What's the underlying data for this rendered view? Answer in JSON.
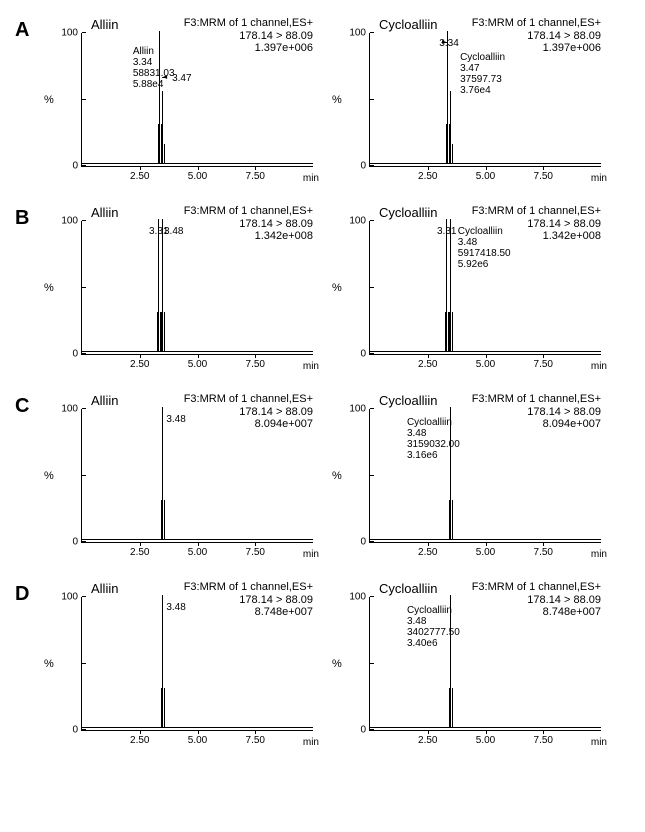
{
  "layout": {
    "xmin": 0,
    "xmax": 10,
    "xticks": [
      2.5,
      5.0,
      7.5
    ],
    "xtick_labels": [
      "2.50",
      "5.00",
      "7.50"
    ],
    "yticks": [
      0,
      100
    ],
    "ytick_labels": [
      "0",
      "100"
    ],
    "ylabel": "%",
    "xlabel": "min",
    "title_fontsize": 13,
    "info_fontsize": 11,
    "tick_fontsize": 10,
    "peak_color": "#000000",
    "axis_color": "#000000",
    "background_color": "#ffffff"
  },
  "rows": [
    {
      "label": "A",
      "panels": [
        {
          "title": "Alliin",
          "info1": "F3:MRM of 1 channel,ES+",
          "info2": "178.14 > 88.09",
          "info3": "1.397e+006",
          "peaks": [
            {
              "rt": 3.34,
              "h": 100,
              "side_h": 30
            },
            {
              "rt": 3.47,
              "h": 55,
              "side_h": 15
            }
          ],
          "ann_left": {
            "lines": [
              "Alliin",
              "3.34",
              "58831.03",
              "5.88e4"
            ],
            "x_rt": 2.2,
            "top_pct": 10
          },
          "rt_label_right": {
            "text": "3.47",
            "x_rt": 3.9,
            "top_pct": 30
          },
          "arrow": {
            "from_rt": 3.7,
            "to_rt": 3.48,
            "top_pct": 30
          }
        },
        {
          "title": "Cycloalliin",
          "info1": "F3:MRM of 1 channel,ES+",
          "info2": "178.14 > 88.09",
          "info3": "1.397e+006",
          "peaks": [
            {
              "rt": 3.34,
              "h": 100,
              "side_h": 30
            },
            {
              "rt": 3.47,
              "h": 55,
              "side_h": 15
            }
          ],
          "rt_label_left": {
            "text": "3.34",
            "x_rt": 3.0,
            "top_pct": 4
          },
          "ann_right": {
            "lines": [
              "Cycloalliin",
              "3.47",
              "37597.73",
              "3.76e4"
            ],
            "x_rt": 3.9,
            "top_pct": 14
          },
          "arrow": {
            "from_rt": 3.1,
            "to_rt": 3.33,
            "top_pct": 4
          }
        }
      ]
    },
    {
      "label": "B",
      "panels": [
        {
          "title": "Alliin",
          "info1": "F3:MRM of 1 channel,ES+",
          "info2": "178.14 > 88.09",
          "info3": "1.342e+008",
          "peaks": [
            {
              "rt": 3.31,
              "h": 100,
              "side_h": 30
            },
            {
              "rt": 3.48,
              "h": 100,
              "side_h": 30
            }
          ],
          "rt_label_left": {
            "text": "3.31",
            "x_rt": 2.9,
            "top_pct": 4
          },
          "rt_label_right": {
            "text": "3.48",
            "x_rt": 3.55,
            "top_pct": 4
          }
        },
        {
          "title": "Cycloalliin",
          "info1": "F3:MRM of 1 channel,ES+",
          "info2": "178.14 > 88.09",
          "info3": "1.342e+008",
          "peaks": [
            {
              "rt": 3.31,
              "h": 100,
              "side_h": 30
            },
            {
              "rt": 3.48,
              "h": 100,
              "side_h": 30
            }
          ],
          "rt_label_left": {
            "text": "3.31",
            "x_rt": 2.9,
            "top_pct": 4
          },
          "ann_right": {
            "lines": [
              "Cycloalliin",
              "3.48",
              "5917418.50",
              "5.92e6"
            ],
            "x_rt": 3.8,
            "top_pct": 4
          }
        }
      ]
    },
    {
      "label": "C",
      "panels": [
        {
          "title": "Alliin",
          "info1": "F3:MRM of 1 channel,ES+",
          "info2": "178.14 > 88.09",
          "info3": "8.094e+007",
          "peaks": [
            {
              "rt": 3.48,
              "h": 100,
              "side_h": 30
            }
          ],
          "rt_label_right": {
            "text": "3.48",
            "x_rt": 3.65,
            "top_pct": 4
          }
        },
        {
          "title": "Cycloalliin",
          "info1": "F3:MRM of 1 channel,ES+",
          "info2": "178.14 > 88.09",
          "info3": "8.094e+007",
          "peaks": [
            {
              "rt": 3.48,
              "h": 100,
              "side_h": 30
            }
          ],
          "ann_left": {
            "lines": [
              "Cycloalliin",
              "3.48",
              "3159032.00",
              "3.16e6"
            ],
            "x_rt": 1.6,
            "top_pct": 6
          }
        }
      ]
    },
    {
      "label": "D",
      "panels": [
        {
          "title": "Alliin",
          "info1": "F3:MRM of 1 channel,ES+",
          "info2": "178.14 > 88.09",
          "info3": "8.748e+007",
          "peaks": [
            {
              "rt": 3.48,
              "h": 100,
              "side_h": 30
            }
          ],
          "rt_label_right": {
            "text": "3.48",
            "x_rt": 3.65,
            "top_pct": 4
          }
        },
        {
          "title": "Cycloalliin",
          "info1": "F3:MRM of 1 channel,ES+",
          "info2": "178.14 > 88.09",
          "info3": "8.748e+007",
          "peaks": [
            {
              "rt": 3.48,
              "h": 100,
              "side_h": 30
            }
          ],
          "ann_left": {
            "lines": [
              "Cycloalliin",
              "3.48",
              "3402777.50",
              "3.40e6"
            ],
            "x_rt": 1.6,
            "top_pct": 6
          }
        }
      ]
    }
  ]
}
